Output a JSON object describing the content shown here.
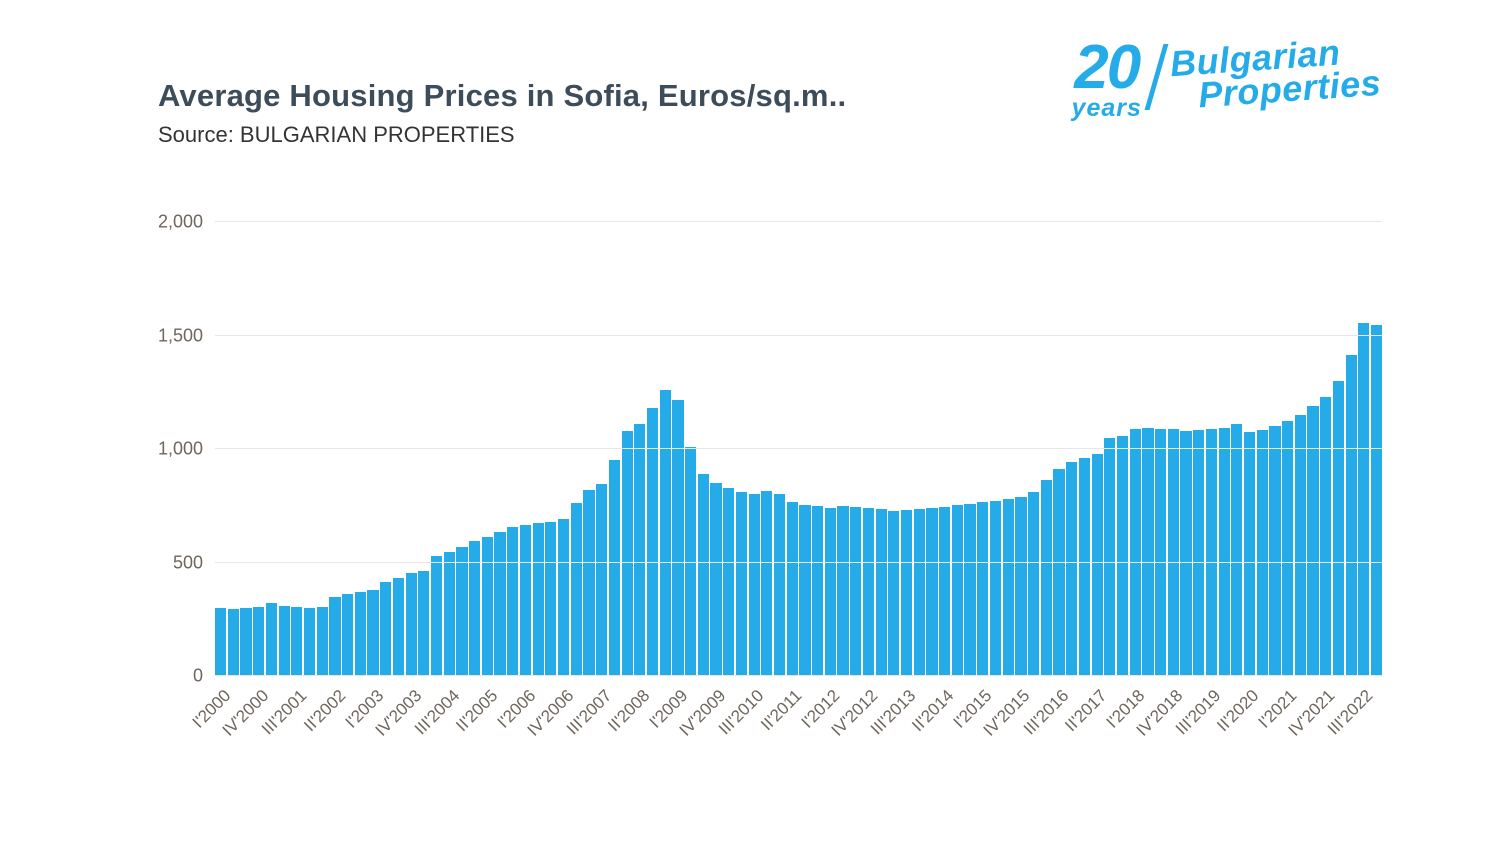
{
  "theme": {
    "accent": "#25ace8",
    "title_color": "#3d4c5a",
    "axis_label_color": "#6f665c",
    "grid_color": "#e6e6e6"
  },
  "page": {
    "title": "Average Housing Prices in Sofia, Euros/sq.m..",
    "source": "Source: BULGARIAN PROPERTIES"
  },
  "logo": {
    "number": "20",
    "years": "years",
    "brand_line1": "Bulgarian",
    "brand_line2": "Properties"
  },
  "chart_data": {
    "type": "bar",
    "title": "Average Housing Prices in Sofia, Euros/sq.m..",
    "ylabel": "",
    "xlabel": "",
    "ylim": [
      0,
      2000
    ],
    "grid": true,
    "legend": false,
    "y_ticks": [
      0,
      500,
      1000,
      1500,
      2000
    ],
    "y_tick_labels": [
      "0",
      "500",
      "1,000",
      "1,500",
      "2,000"
    ],
    "x_tick_every": 3,
    "x_tick_labels": [
      "I'2000",
      "IV'2000",
      "III'2001",
      "II'2002",
      "I'2003",
      "IV'2003",
      "III'2004",
      "II'2005",
      "I'2006",
      "IV'2006",
      "III'2007",
      "II'2008",
      "I'2009",
      "IV'2009",
      "III'2010",
      "II'2011",
      "I'2012",
      "IV'2012",
      "III'2013",
      "II'2014",
      "I'2015",
      "IV'2015",
      "III'2016",
      "II'2017",
      "I'2018",
      "IV'2018",
      "III'2019",
      "II'2020",
      "I'2021",
      "IV'2021",
      "III'2022"
    ],
    "categories": [
      "I'2000",
      "II'2000",
      "III'2000",
      "IV'2000",
      "I'2001",
      "II'2001",
      "III'2001",
      "IV'2001",
      "I'2002",
      "II'2002",
      "III'2002",
      "IV'2002",
      "I'2003",
      "II'2003",
      "III'2003",
      "IV'2003",
      "I'2004",
      "II'2004",
      "III'2004",
      "IV'2004",
      "I'2005",
      "II'2005",
      "III'2005",
      "IV'2005",
      "I'2006",
      "II'2006",
      "III'2006",
      "IV'2006",
      "I'2007",
      "II'2007",
      "III'2007",
      "IV'2007",
      "I'2008",
      "II'2008",
      "III'2008",
      "IV'2008",
      "I'2009",
      "II'2009",
      "III'2009",
      "IV'2009",
      "I'2010",
      "II'2010",
      "III'2010",
      "IV'2010",
      "I'2011",
      "II'2011",
      "III'2011",
      "IV'2011",
      "I'2012",
      "II'2012",
      "III'2012",
      "IV'2012",
      "I'2013",
      "II'2013",
      "III'2013",
      "IV'2013",
      "I'2014",
      "II'2014",
      "III'2014",
      "IV'2014",
      "I'2015",
      "II'2015",
      "III'2015",
      "IV'2015",
      "I'2016",
      "II'2016",
      "III'2016",
      "IV'2016",
      "I'2017",
      "II'2017",
      "III'2017",
      "IV'2017",
      "I'2018",
      "II'2018",
      "III'2018",
      "IV'2018",
      "I'2019",
      "II'2019",
      "III'2019",
      "IV'2019",
      "I'2020",
      "II'2020",
      "III'2020",
      "IV'2020",
      "I'2021",
      "II'2021",
      "III'2021",
      "IV'2021",
      "I'2022",
      "II'2022",
      "III'2022",
      "IV'2022"
    ],
    "values": [
      300,
      297,
      300,
      302,
      320,
      310,
      305,
      300,
      305,
      350,
      360,
      368,
      378,
      415,
      432,
      455,
      462,
      530,
      548,
      570,
      595,
      612,
      635,
      655,
      665,
      672,
      680,
      692,
      760,
      820,
      845,
      950,
      1080,
      1110,
      1180,
      1260,
      1215,
      1010,
      890,
      850,
      830,
      812,
      800,
      815,
      800,
      765,
      755,
      748,
      742,
      750,
      745,
      740,
      735,
      726,
      730,
      735,
      740,
      746,
      752,
      756,
      765,
      772,
      778,
      790,
      812,
      865,
      910,
      942,
      962,
      978,
      1050,
      1056,
      1090,
      1094,
      1090,
      1086,
      1080,
      1082,
      1086,
      1092,
      1110,
      1076,
      1082,
      1100,
      1122,
      1152,
      1188,
      1228,
      1300,
      1415,
      1555,
      1545
    ],
    "bar_color": "#25ace8"
  }
}
